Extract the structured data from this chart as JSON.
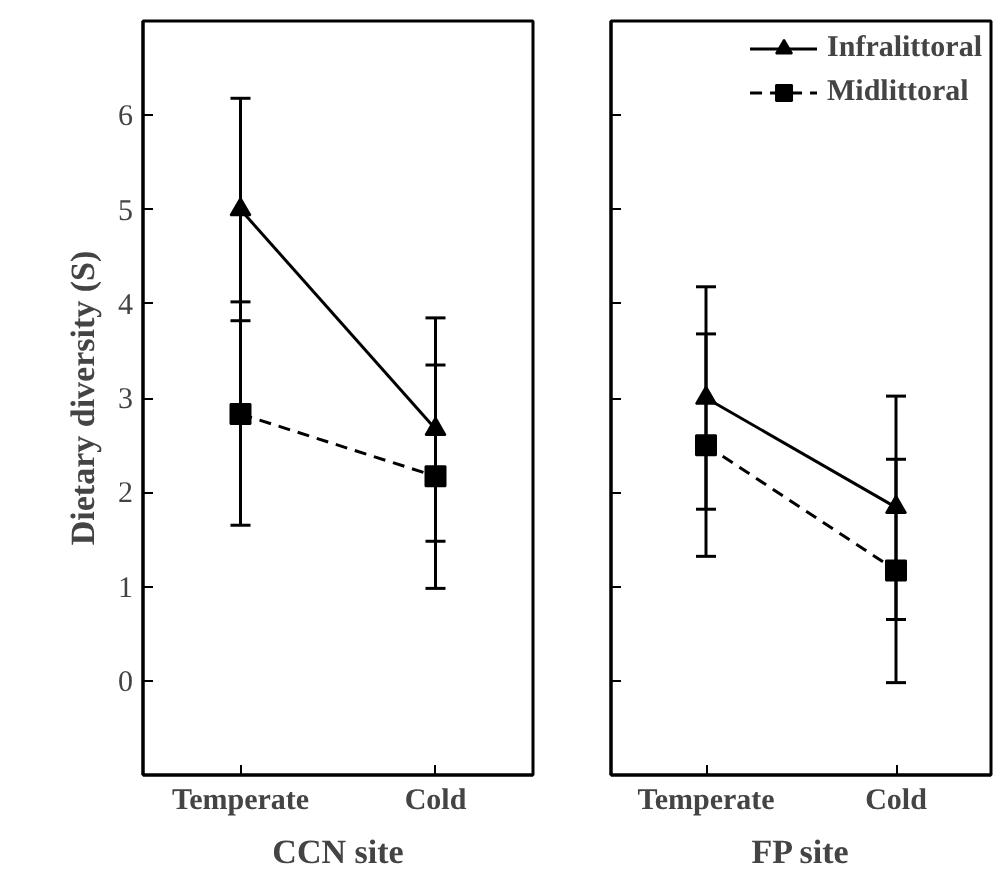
{
  "chart_data": [
    {
      "type": "line",
      "categories": [
        "Temperate",
        "Cold"
      ],
      "xlabel": "CCN site",
      "ylabel": "Dietary diversity (S)",
      "ylim": [
        -1,
        7
      ],
      "yticks": [
        0,
        1,
        2,
        3,
        4,
        5,
        6
      ],
      "legend": false,
      "series": [
        {
          "color": "#000000",
          "marker": "triangle",
          "line_style": "solid",
          "values": [
            5.0,
            2.67
          ],
          "errors": [
            [
              3.82,
              6.18
            ],
            [
              1.48,
              3.85
            ]
          ]
        },
        {
          "color": "#000000",
          "marker": "square",
          "line_style": "dashed",
          "values": [
            2.83,
            2.17
          ],
          "errors": [
            [
              1.65,
              4.02
            ],
            [
              0.98,
              3.35
            ]
          ]
        }
      ]
    },
    {
      "type": "line",
      "categories": [
        "Temperate",
        "Cold"
      ],
      "xlabel": "FP site",
      "ylim": [
        -1,
        7
      ],
      "yticks": [
        0,
        1,
        2,
        3,
        4,
        5,
        6
      ],
      "tick_labels": "x",
      "legend": "top right",
      "series": [
        {
          "name": "Infralittoral",
          "color": "#000000",
          "marker": "triangle",
          "line_style": "solid",
          "values": [
            3.0,
            1.84
          ],
          "errors": [
            [
              1.82,
              4.18
            ],
            [
              0.65,
              3.02
            ]
          ]
        },
        {
          "name": "Midlittoral",
          "color": "#000000",
          "marker": "square",
          "line_style": "dashed",
          "values": [
            2.5,
            1.17
          ],
          "errors": [
            [
              1.32,
              3.68
            ],
            [
              -0.02,
              2.35
            ]
          ]
        }
      ]
    }
  ]
}
